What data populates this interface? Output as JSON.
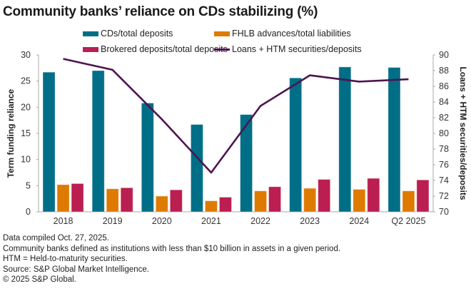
{
  "chart_data": {
    "type": "bar",
    "title": "Community banks’ reliance on CDs stabilizing (%)",
    "categories": [
      "2018",
      "2019",
      "2020",
      "2021",
      "2022",
      "2023",
      "2024",
      "Q2 2025"
    ],
    "series": [
      {
        "name": "CDs/total deposits",
        "type": "bar",
        "axis": "left",
        "color": "#006E87",
        "values": [
          26.7,
          27.0,
          20.8,
          16.7,
          18.6,
          25.6,
          27.7,
          27.6
        ]
      },
      {
        "name": "FHLB advances/total liabilities",
        "type": "bar",
        "axis": "left",
        "color": "#DE7A00",
        "values": [
          5.2,
          4.4,
          3.0,
          2.1,
          4.0,
          4.5,
          4.3,
          4.0
        ]
      },
      {
        "name": "Brokered deposits/total deposits",
        "type": "bar",
        "axis": "left",
        "color": "#BB1E50",
        "values": [
          5.4,
          4.6,
          4.2,
          2.8,
          4.8,
          6.2,
          6.4,
          6.1
        ]
      },
      {
        "name": "Loans + HTM securities/deposits",
        "type": "line",
        "axis": "right",
        "color": "#4E1450",
        "values": [
          89.5,
          88.1,
          81.8,
          75.0,
          83.5,
          87.4,
          86.6,
          86.9
        ]
      }
    ],
    "ylabel": "Term funding reliance",
    "ylim": [
      0,
      30
    ],
    "yticks": [
      "0",
      "5",
      "10",
      "15",
      "20",
      "25",
      "30"
    ],
    "y2label": "Loans + HTM securities/deposits",
    "y2lim": [
      70,
      90
    ],
    "y2ticks": [
      "70",
      "72",
      "74",
      "76",
      "78",
      "80",
      "82",
      "84",
      "86",
      "88",
      "90"
    ],
    "grid": false,
    "legend_position": "top"
  },
  "legend": {
    "cds": "CDs/total deposits",
    "fhlb": "FHLB advances/total liabilities",
    "brokered": "Brokered deposits/total deposits",
    "loans": "Loans + HTM securities/deposits"
  },
  "notes": [
    "Data compiled Oct. 27, 2025.",
    "Community banks defined as institutions with less than $10 billion in assets in a given period.",
    "HTM = Held-to-maturity securities.",
    "Source: S&P Global Market Intelligence.",
    "© 2025 S&P Global."
  ]
}
